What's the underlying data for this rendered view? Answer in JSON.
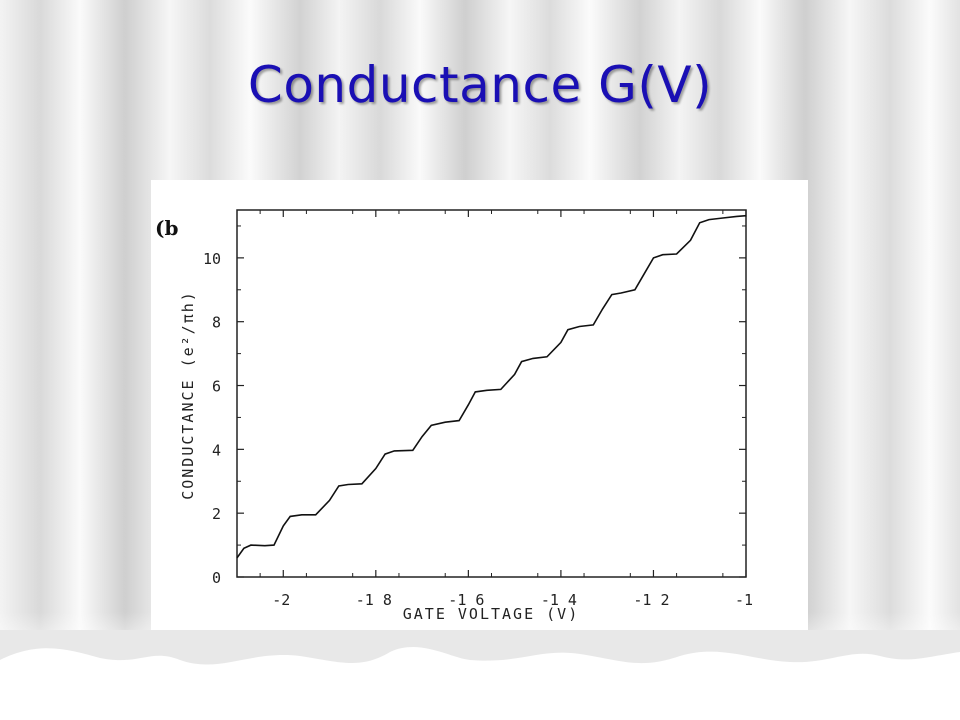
{
  "slide": {
    "title": "Conductance G(V)"
  },
  "chart_data": {
    "type": "line",
    "panel_label": "(b",
    "xlabel": "GATE VOLTAGE (V)",
    "ylabel": "CONDUCTANCE (e²/πh)",
    "xlim": [
      -2.1,
      -1.0
    ],
    "ylim": [
      0,
      11.5
    ],
    "x_ticks": [
      -2,
      -1.8,
      -1.6,
      -1.4,
      -1.2,
      -1
    ],
    "x_tick_labels": [
      "-2",
      "-1 8",
      "-1 6",
      "-1 4",
      "-1 2",
      "-1"
    ],
    "y_ticks": [
      0,
      2,
      4,
      6,
      8,
      10
    ],
    "y_tick_labels": [
      "0",
      "2",
      "4",
      "6",
      "8",
      "10"
    ],
    "grid": false,
    "series": [
      {
        "color": "#111111",
        "points": [
          [
            -2.1,
            0.6
          ],
          [
            -2.085,
            0.9
          ],
          [
            -2.07,
            1.0
          ],
          [
            -2.04,
            0.98
          ],
          [
            -2.02,
            1.0
          ],
          [
            -2.0,
            1.6
          ],
          [
            -1.985,
            1.9
          ],
          [
            -1.96,
            1.95
          ],
          [
            -1.93,
            1.95
          ],
          [
            -1.9,
            2.4
          ],
          [
            -1.88,
            2.85
          ],
          [
            -1.86,
            2.9
          ],
          [
            -1.83,
            2.92
          ],
          [
            -1.8,
            3.4
          ],
          [
            -1.78,
            3.85
          ],
          [
            -1.76,
            3.95
          ],
          [
            -1.72,
            3.97
          ],
          [
            -1.7,
            4.4
          ],
          [
            -1.68,
            4.75
          ],
          [
            -1.65,
            4.85
          ],
          [
            -1.62,
            4.9
          ],
          [
            -1.6,
            5.4
          ],
          [
            -1.585,
            5.8
          ],
          [
            -1.56,
            5.85
          ],
          [
            -1.53,
            5.88
          ],
          [
            -1.5,
            6.35
          ],
          [
            -1.485,
            6.75
          ],
          [
            -1.46,
            6.85
          ],
          [
            -1.43,
            6.9
          ],
          [
            -1.4,
            7.35
          ],
          [
            -1.385,
            7.75
          ],
          [
            -1.36,
            7.85
          ],
          [
            -1.33,
            7.9
          ],
          [
            -1.31,
            8.4
          ],
          [
            -1.29,
            8.85
          ],
          [
            -1.27,
            8.9
          ],
          [
            -1.24,
            9.0
          ],
          [
            -1.22,
            9.5
          ],
          [
            -1.2,
            10.0
          ],
          [
            -1.18,
            10.1
          ],
          [
            -1.15,
            10.12
          ],
          [
            -1.12,
            10.55
          ],
          [
            -1.1,
            11.1
          ],
          [
            -1.08,
            11.2
          ],
          [
            -1.05,
            11.25
          ],
          [
            -1.02,
            11.3
          ],
          [
            -1.0,
            11.32
          ]
        ]
      }
    ]
  }
}
